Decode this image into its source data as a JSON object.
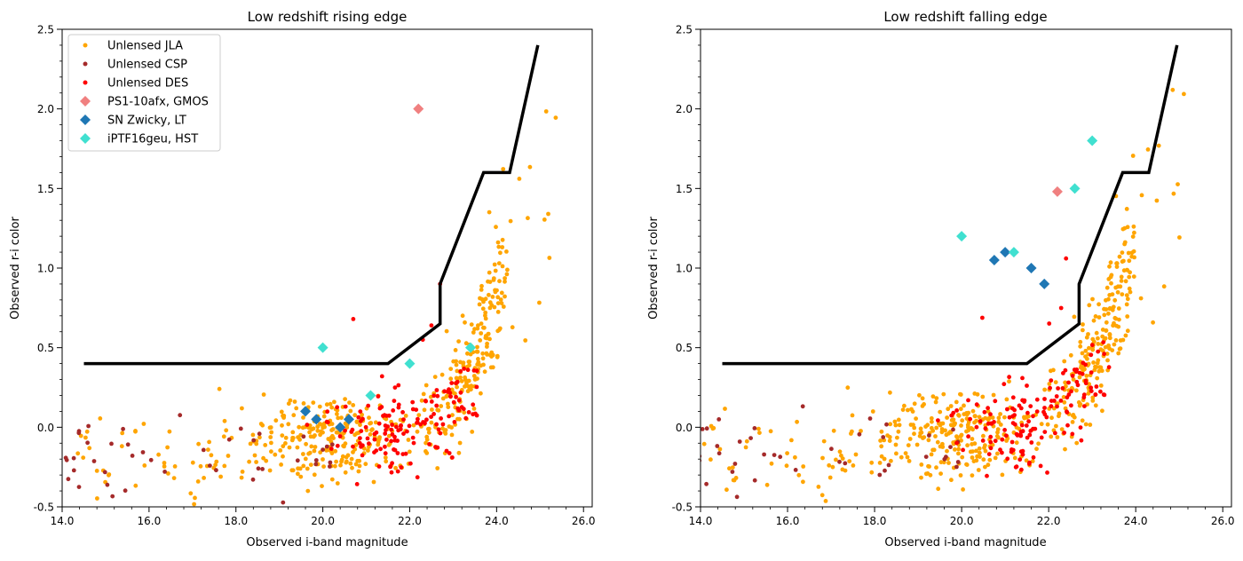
{
  "chart_data": [
    {
      "type": "scatter",
      "title": "Low redshift rising edge",
      "xlabel": "Observed i-band magnitude",
      "ylabel": "Observed r-i color",
      "xlim": [
        14.0,
        26.2
      ],
      "ylim": [
        -0.5,
        2.5
      ],
      "xticks": [
        14.0,
        16.0,
        18.0,
        20.0,
        22.0,
        24.0,
        26.0
      ],
      "yticks": [
        -0.5,
        0.0,
        0.5,
        1.0,
        1.5,
        2.0,
        2.5
      ],
      "xtick_labels": [
        "14.0",
        "16.0",
        "18.0",
        "20.0",
        "22.0",
        "24.0",
        "26.0"
      ],
      "ytick_labels": [
        "-0.5",
        "0.0",
        "0.5",
        "1.0",
        "1.5",
        "2.0",
        "2.5"
      ],
      "legend_position": "top-left",
      "legend": [
        "Unlensed JLA",
        "Unlensed CSP",
        "Unlensed DES",
        "PS1-10afx, GMOS",
        "SN Zwicky, LT",
        "iPTF16geu, HST"
      ],
      "series": [
        {
          "name": "Unlensed JLA",
          "color": "#ffa500",
          "marker": "dot",
          "cloud": "low"
        },
        {
          "name": "Unlensed CSP",
          "color": "#a52a2a",
          "marker": "dot",
          "cloud": "low"
        },
        {
          "name": "Unlensed DES",
          "color": "#ff0000",
          "marker": "dot",
          "cloud": "low"
        },
        {
          "name": "PS1-10afx, GMOS",
          "color": "#f08080",
          "marker": "diamond",
          "x": [
            22.2
          ],
          "y": [
            2.0
          ]
        },
        {
          "name": "SN Zwicky, LT",
          "color": "#1f77b4",
          "marker": "diamond",
          "x": [
            19.6,
            19.85,
            20.4,
            20.6
          ],
          "y": [
            0.1,
            0.05,
            0.0,
            0.05
          ]
        },
        {
          "name": "iPTF16geu, HST",
          "color": "#40e0d0",
          "marker": "diamond",
          "x": [
            20.0,
            21.1,
            22.0,
            23.4
          ],
          "y": [
            0.5,
            0.2,
            0.4,
            0.5
          ]
        }
      ],
      "boundary": {
        "color": "#000000",
        "x": [
          14.5,
          21.5,
          22.7,
          22.7,
          23.7,
          24.3,
          24.95
        ],
        "y": [
          0.4,
          0.4,
          0.65,
          0.9,
          1.6,
          1.6,
          2.4
        ]
      }
    },
    {
      "type": "scatter",
      "title": "Low redshift falling edge",
      "xlabel": "Observed i-band magnitude",
      "ylabel": "Observed r-i color",
      "xlim": [
        14.0,
        26.2
      ],
      "ylim": [
        -0.5,
        2.5
      ],
      "xticks": [
        14.0,
        16.0,
        18.0,
        20.0,
        22.0,
        24.0,
        26.0
      ],
      "yticks": [
        -0.5,
        0.0,
        0.5,
        1.0,
        1.5,
        2.0,
        2.5
      ],
      "xtick_labels": [
        "14.0",
        "16.0",
        "18.0",
        "20.0",
        "22.0",
        "24.0",
        "26.0"
      ],
      "ytick_labels": [
        "-0.5",
        "0.0",
        "0.5",
        "1.0",
        "1.5",
        "2.0",
        "2.5"
      ],
      "series": [
        {
          "name": "Unlensed JLA",
          "color": "#ffa500",
          "marker": "dot",
          "cloud": "low"
        },
        {
          "name": "Unlensed CSP",
          "color": "#a52a2a",
          "marker": "dot",
          "cloud": "low"
        },
        {
          "name": "Unlensed DES",
          "color": "#ff0000",
          "marker": "dot",
          "cloud": "low"
        },
        {
          "name": "PS1-10afx, GMOS",
          "color": "#f08080",
          "marker": "diamond",
          "x": [
            22.2
          ],
          "y": [
            1.48
          ]
        },
        {
          "name": "SN Zwicky, LT",
          "color": "#1f77b4",
          "marker": "diamond",
          "x": [
            20.75,
            21.0,
            21.6,
            21.9
          ],
          "y": [
            1.05,
            1.1,
            1.0,
            0.9
          ]
        },
        {
          "name": "iPTF16geu, HST",
          "color": "#40e0d0",
          "marker": "diamond",
          "x": [
            20.0,
            21.2,
            22.6,
            23.0
          ],
          "y": [
            1.2,
            1.1,
            1.5,
            1.8
          ]
        }
      ],
      "boundary": {
        "color": "#000000",
        "x": [
          14.5,
          21.5,
          22.7,
          22.7,
          23.7,
          24.3,
          24.95
        ],
        "y": [
          0.4,
          0.4,
          0.65,
          0.9,
          1.6,
          1.6,
          2.4
        ]
      }
    }
  ]
}
